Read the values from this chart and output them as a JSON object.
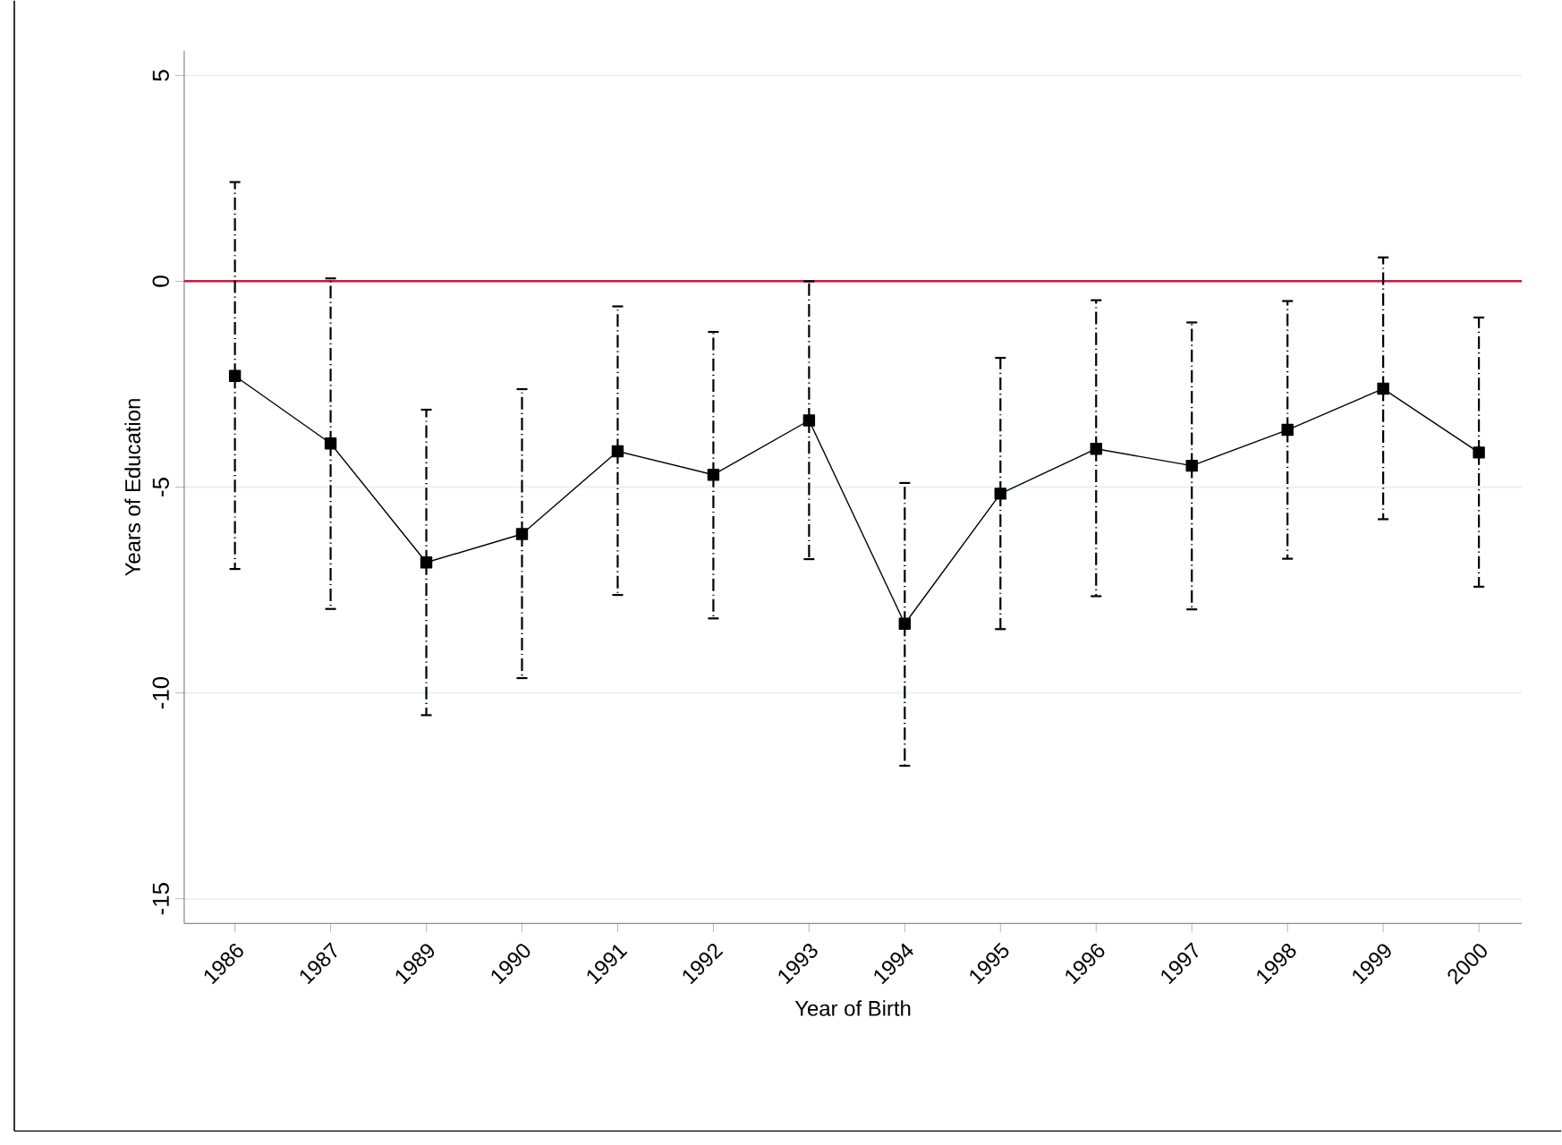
{
  "chart_data": {
    "type": "line",
    "xlabel": "Year of Birth",
    "ylabel": "Years of Education",
    "categories": [
      "1986",
      "1987",
      "1989",
      "1990",
      "1991",
      "1992",
      "1993",
      "1994",
      "1995",
      "1996",
      "1997",
      "1998",
      "1999",
      "2000"
    ],
    "values": [
      -2.3,
      -3.94,
      -6.83,
      -6.14,
      -4.13,
      -4.7,
      -3.38,
      -8.32,
      -5.16,
      -4.07,
      -4.48,
      -3.61,
      -2.61,
      -4.16
    ],
    "errors": [
      [
        -6.99,
        2.41
      ],
      [
        -7.96,
        0.07
      ],
      [
        -10.54,
        -3.12
      ],
      [
        -9.64,
        -2.62
      ],
      [
        -7.62,
        -0.61
      ],
      [
        -8.19,
        -1.23
      ],
      [
        -6.75,
        0.0
      ],
      [
        -11.77,
        -4.9
      ],
      [
        -8.45,
        -1.86
      ],
      [
        -7.65,
        -0.46
      ],
      [
        -7.97,
        -1.0
      ],
      [
        -6.74,
        -0.48
      ],
      [
        -5.78,
        0.58
      ],
      [
        -7.42,
        -0.88
      ]
    ],
    "color": "#000000",
    "marker": "square",
    "line_style": "solid",
    "ylim": [
      -15.6,
      5.6
    ],
    "yticks": [
      -15,
      -10,
      -5,
      0,
      5
    ],
    "grid": "y",
    "ref_lines": [
      {
        "axis": "y",
        "value": 0,
        "color": "#c81e46"
      }
    ]
  }
}
